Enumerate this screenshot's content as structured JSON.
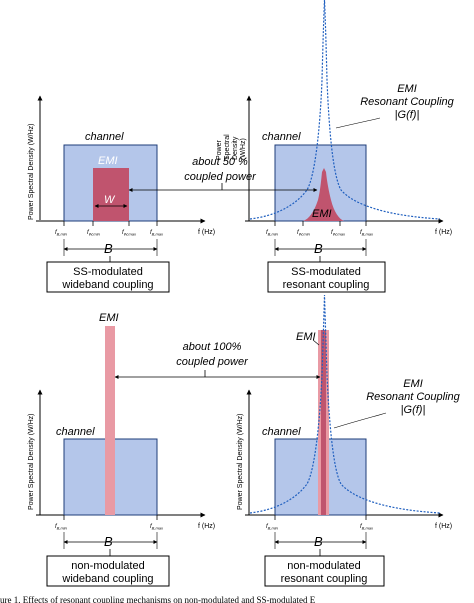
{
  "colors": {
    "channel_fill": "#b4c6ea",
    "channel_stroke": "#1e3c78",
    "emi_wide_fill": "#c0546e",
    "emi_narrow_fill": "#e99aa4",
    "emi_narrow_core": "#c0546e",
    "resonance_curve": "#1f5fbf",
    "axis": "#000000"
  },
  "axis": {
    "y_label": "Power Spectral Density (W/Hz)",
    "y_label_stacked": [
      "Power",
      "Spectral",
      "Density",
      "(W/Hz)"
    ],
    "x_label": "f (Hz)"
  },
  "ticks": {
    "fb_min": {
      "base": "f",
      "sub": "B,min"
    },
    "fb_max": {
      "base": "f",
      "sub": "B,max"
    },
    "fw_min": {
      "base": "f",
      "sub": "W,min"
    },
    "fw_max": {
      "base": "f",
      "sub": "W,max"
    }
  },
  "labels": {
    "channel": "channel",
    "emi": "EMI",
    "w": "W",
    "b": "B",
    "coupling_top": "about 50 %",
    "coupling_top_2": "coupled power",
    "coupling_bottom": "about 100%",
    "coupling_bottom_2": "coupled power",
    "resonant_1": "EMI",
    "resonant_2": "Resonant Coupling",
    "resonant_3": "|G(f)|"
  },
  "boxes": {
    "ss_wideband": [
      "SS-modulated",
      "wideband coupling"
    ],
    "ss_resonant": [
      "SS-modulated",
      "resonant coupling"
    ],
    "nm_wideband": [
      "non-modulated",
      "wideband coupling"
    ],
    "nm_resonant": [
      "non-modulated",
      "resonant coupling"
    ]
  },
  "caption": "ure 1. Effects of resonant coupling mechanisms on non-modulated and SS-modulated E"
}
